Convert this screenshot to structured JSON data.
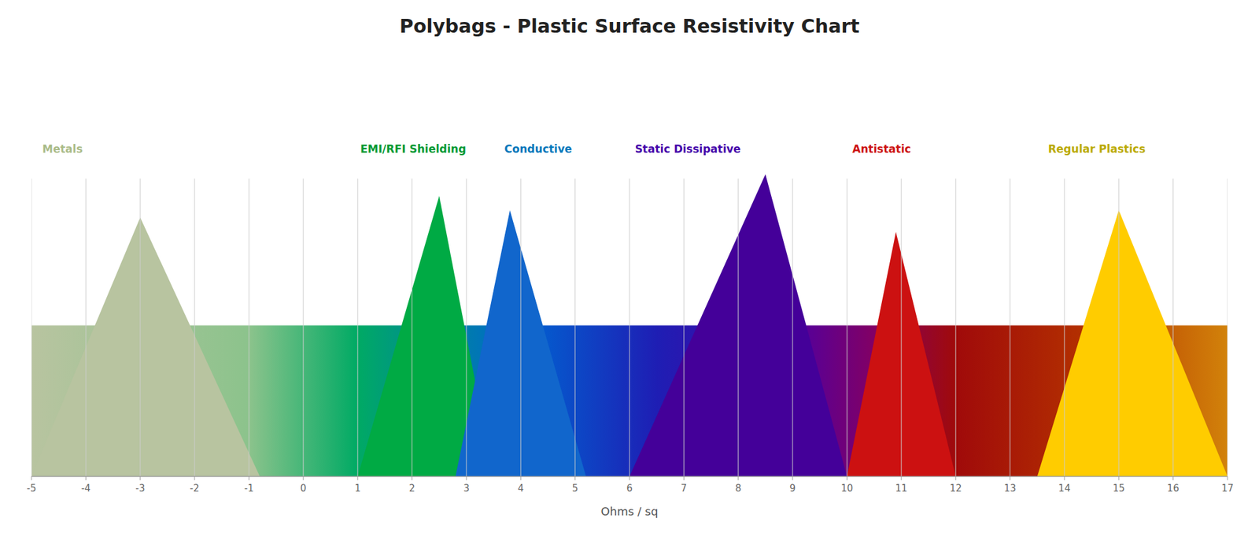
{
  "chart_data": {
    "type": "triangle",
    "title": "Polybags - Plastic Surface Resistivity Chart",
    "x_label": "Ohms / sq",
    "xlim": [
      -5,
      17
    ],
    "xticks": [
      -5,
      -4,
      -3,
      -2,
      -1,
      0,
      1,
      2,
      3,
      4,
      5,
      6,
      7,
      8,
      9,
      10,
      11,
      12,
      13,
      14,
      15,
      16,
      17
    ],
    "ylim": [
      0,
      1.15
    ],
    "grid": true,
    "tick_labels": "x",
    "series": [
      {
        "color": "#B8C4A0",
        "x": [
          -5.0,
          -3.0,
          -0.8
        ],
        "values": [
          0,
          0.72,
          0
        ]
      },
      {
        "color": "#00AA44",
        "x": [
          1.0,
          2.5,
          3.5
        ],
        "values": [
          0,
          0.78,
          0
        ]
      },
      {
        "color": "#1166CC",
        "x": [
          2.8,
          3.8,
          5.2
        ],
        "values": [
          0,
          0.74,
          0
        ]
      },
      {
        "color": "#440099",
        "x": [
          6.0,
          8.5,
          10.0
        ],
        "values": [
          0,
          0.84,
          0
        ]
      },
      {
        "color": "#CC1111",
        "x": [
          10.0,
          10.9,
          12.0
        ],
        "values": [
          0,
          0.68,
          0
        ]
      },
      {
        "color": "#FFCC00",
        "x": [
          13.5,
          15.0,
          17.0
        ],
        "values": [
          0,
          0.74,
          0
        ]
      }
    ],
    "annotations": [
      {
        "text": "Metals",
        "x": -4.8,
        "y": 0.9,
        "color": "#AABB88"
      },
      {
        "text": "EMI/RFI Shielding",
        "x": 1.05,
        "y": 0.9,
        "color": "#009933"
      },
      {
        "text": "Conductive",
        "x": 3.7,
        "y": 0.9,
        "color": "#0077BB"
      },
      {
        "text": "Static Dissipative",
        "x": 6.1,
        "y": 0.9,
        "color": "#4400AA"
      },
      {
        "text": "Antistatic",
        "x": 10.1,
        "y": 0.9,
        "color": "#CC1111"
      },
      {
        "text": "Regular Plastics",
        "x": 13.7,
        "y": 0.9,
        "color": "#BBAA00"
      }
    ],
    "background": {
      "height": 0.42,
      "stops": [
        {
          "x": -5.0,
          "color": "#b8c4a0"
        },
        {
          "x": -1.0,
          "color": "#8cc38c"
        },
        {
          "x": 1.0,
          "color": "#00aa64"
        },
        {
          "x": 4.0,
          "color": "#0064d2"
        },
        {
          "x": 6.5,
          "color": "#1e1eb4"
        },
        {
          "x": 9.0,
          "color": "#5000a0"
        },
        {
          "x": 10.5,
          "color": "#820064"
        },
        {
          "x": 12.0,
          "color": "#a00a0a"
        },
        {
          "x": 14.5,
          "color": "#b43200"
        },
        {
          "x": 17.0,
          "color": "#d2820a"
        }
      ]
    }
  }
}
